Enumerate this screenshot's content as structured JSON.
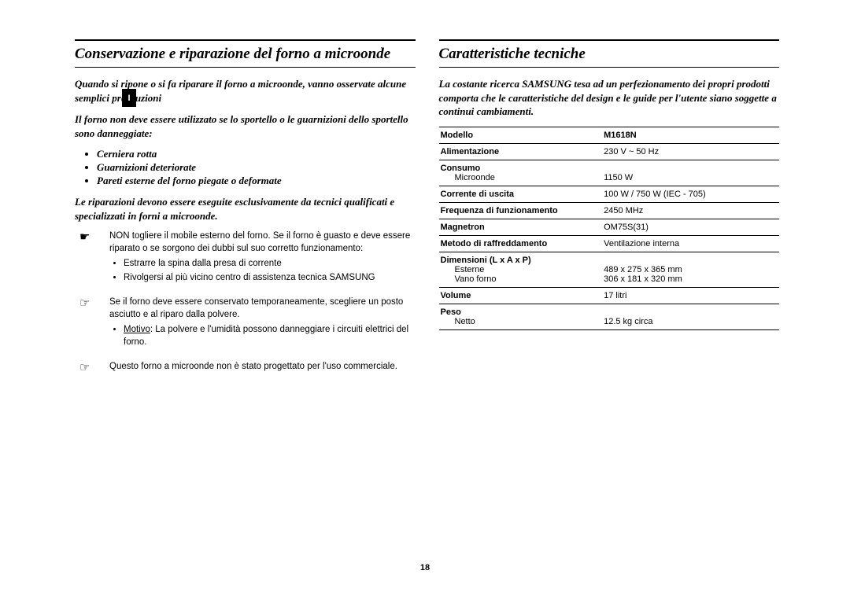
{
  "language_tab": "I",
  "page_number": "18",
  "left": {
    "title": "Conservazione e riparazione del forno a microonde",
    "intro1": "Quando si ripone o si fa riparare il forno a microonde, vanno osservate alcune semplici precauzioni",
    "intro2": "Il forno non deve essere  utilizzato se  lo sportello o le guarnizioni dello sportello sono danneggiate:",
    "bullets": [
      "Cerniera rotta",
      "Guarnizioni deteriorate",
      "Pareti esterne del forno piegate o deformate"
    ],
    "intro3": "Le riparazioni devono essere eseguite esclusivamente da tecnici qualificati e specializzati in forni a microonde.",
    "notes": [
      {
        "icon": "☛",
        "text": "NON togliere il mobile esterno del forno. Se il forno è guasto e deve essere riparato o se sorgono dei dubbi sul suo corretto funzionamento:",
        "sub": [
          "Estrarre la spina dalla presa di corrente",
          "Rivolgersi al più vicino centro di assistenza tecnica SAMSUNG"
        ]
      },
      {
        "icon": "☞",
        "text_prefix": "Se il forno deve essere conservato temporaneamente, scegliere un posto asciutto e al riparo dalla polvere.",
        "sub_label": "Motivo",
        "sub_text": ": La polvere e l'umidità possono danneggiare i circuiti elettrici del forno."
      },
      {
        "icon": "☞",
        "text": "Questo forno a microonde non è stato progettato per l'uso commerciale."
      }
    ]
  },
  "right": {
    "title": "Caratteristiche tecniche",
    "intro": "La costante ricerca SAMSUNG tesa ad un perfezionamento dei propri prodotti comporta che le caratteristiche del design e le guide per l'utente siano soggette a continui cambiamenti.",
    "rows": [
      {
        "label": "Modello",
        "value": "M1618N"
      },
      {
        "label": "Alimentazione",
        "value": "230 V ~ 50 Hz"
      },
      {
        "label": "Consumo",
        "sub": "Microonde",
        "value": "1150 W"
      },
      {
        "label": "Corrente di uscita",
        "value": "100 W / 750 W (IEC - 705)"
      },
      {
        "label": "Frequenza di funzionamento",
        "value": "2450 MHz"
      },
      {
        "label": "Magnetron",
        "value": "OM75S(31)"
      },
      {
        "label": "Metodo di raffreddamento",
        "value": "Ventilazione interna"
      },
      {
        "label": "Dimensioni (L x A x P)",
        "subs": [
          "Esterne",
          "Vano forno"
        ],
        "values": [
          "489 x 275 x 365 mm",
          "306 x 181 x 320 mm"
        ]
      },
      {
        "label": "Volume",
        "value": "17 litri"
      },
      {
        "label": "Peso",
        "sub": "Netto",
        "value": "12.5 kg circa"
      }
    ]
  }
}
